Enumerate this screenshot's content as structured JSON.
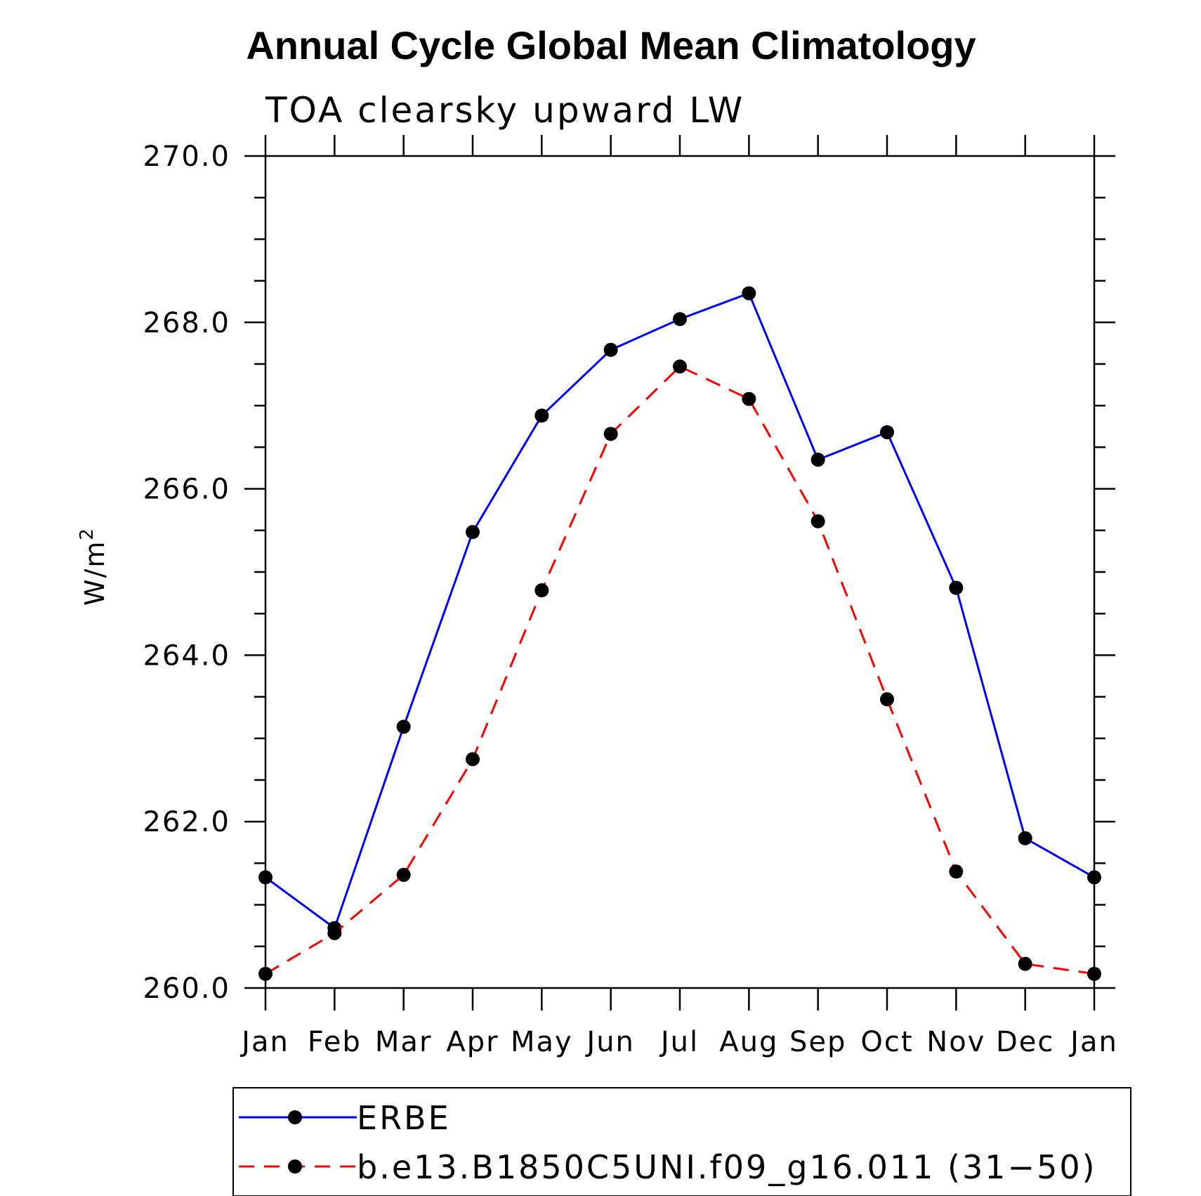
{
  "chart_data": {
    "type": "line",
    "title": "Annual Cycle Global Mean Climatology",
    "subtitle": "TOA clearsky upward LW",
    "ylabel": "W/m",
    "ylabel_superscript": "2",
    "ylim": [
      260.0,
      270.0
    ],
    "yticks": [
      "260.0",
      "262.0",
      "264.0",
      "266.0",
      "268.0",
      "270.0"
    ],
    "categories": [
      "Jan",
      "Feb",
      "Mar",
      "Apr",
      "May",
      "Jun",
      "Jul",
      "Aug",
      "Sep",
      "Oct",
      "Nov",
      "Dec",
      "Jan"
    ],
    "series": [
      {
        "name": "ERBE",
        "color": "#0000ff",
        "style": "solid",
        "marker": "filled-circle",
        "values": [
          261.33,
          260.72,
          263.14,
          265.48,
          266.88,
          267.67,
          268.04,
          268.35,
          266.35,
          266.68,
          264.81,
          261.8,
          261.33
        ]
      },
      {
        "name": "b.e13.B1850C5UNI.f09_g16.011 (31−50)",
        "color": "#ff0000",
        "style": "dashed",
        "marker": "filled-circle",
        "values": [
          260.17,
          260.66,
          261.36,
          262.75,
          264.78,
          266.66,
          267.47,
          267.08,
          265.61,
          263.47,
          261.4,
          260.29,
          260.17
        ]
      }
    ],
    "legend_position": "bottom"
  }
}
